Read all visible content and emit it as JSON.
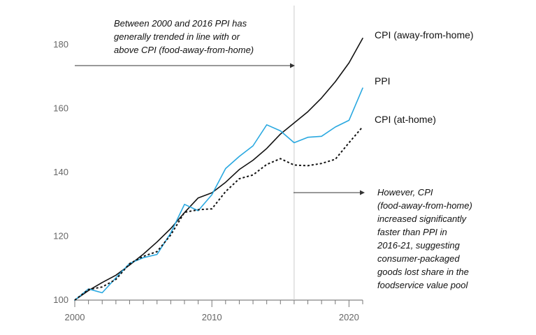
{
  "chart_data": {
    "type": "line",
    "title": "",
    "xlabel": "",
    "ylabel": "",
    "xlim": [
      2000,
      2021
    ],
    "ylim": [
      100,
      182
    ],
    "x_ticks": [
      2000,
      2010,
      2020
    ],
    "y_ticks": [
      100,
      120,
      140,
      160,
      180
    ],
    "x": [
      2000,
      2001,
      2002,
      2003,
      2004,
      2005,
      2006,
      2007,
      2008,
      2009,
      2010,
      2011,
      2012,
      2013,
      2014,
      2015,
      2016,
      2017,
      2018,
      2019,
      2020,
      2021
    ],
    "series": [
      {
        "name": "CPI (away-from-home)",
        "color": "#111111",
        "style": "solid",
        "values": [
          100,
          103,
          105.5,
          107.8,
          111,
          114.4,
          118.2,
          122.4,
          127.4,
          132,
          133.6,
          136.9,
          140.9,
          143.8,
          147.5,
          152,
          155.5,
          159,
          163.3,
          168.4,
          174.3,
          182
        ]
      },
      {
        "name": "PPI",
        "color": "#29a8e0",
        "style": "solid",
        "values": [
          100,
          103.5,
          102.3,
          107,
          111.5,
          113.3,
          114.3,
          121,
          130,
          128,
          133,
          141.2,
          145,
          148.3,
          154.9,
          153,
          149.3,
          151,
          151.3,
          154.2,
          156.3,
          166.4
        ]
      },
      {
        "name": "CPI (at-home)",
        "color": "#111111",
        "style": "dotted",
        "values": [
          100,
          103.3,
          104.1,
          106.5,
          111.4,
          113.7,
          115.2,
          120.4,
          127.5,
          128.3,
          128.6,
          134,
          138,
          139.2,
          142.5,
          144.3,
          142.3,
          142.1,
          142.8,
          144.1,
          149.3,
          154.3
        ]
      }
    ],
    "annotations": [
      {
        "lines": [
          "Between 2000 and 2016 PPI has",
          "generally trended in line with or",
          "above CPI (food-away-from-home)"
        ]
      },
      {
        "lines": [
          "However, CPI",
          "(food-away-from-home)",
          "increased significantly",
          "faster than PPI in",
          "2016-21, suggesting",
          "consumer-packaged",
          "goods lost share in the",
          "foodservice value pool"
        ]
      }
    ]
  }
}
